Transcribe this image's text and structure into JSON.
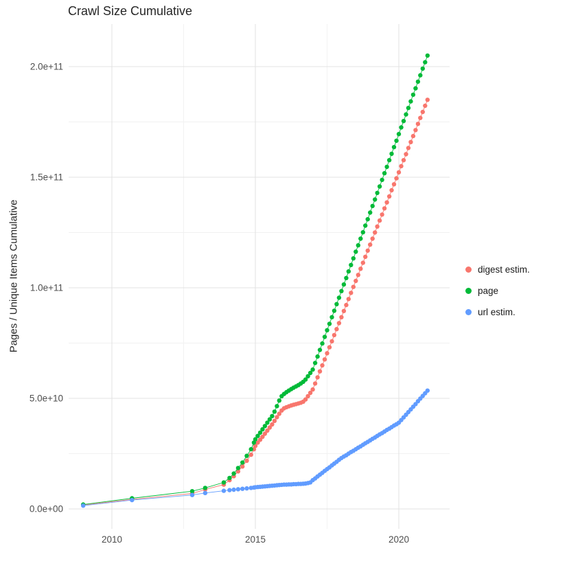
{
  "title": "Crawl Size Cumulative",
  "axes": {
    "y_label": "Pages / Unique Items Cumulative",
    "x_ticks": {
      "values": [
        2010,
        2015,
        2020
      ],
      "labels": [
        "2010",
        "2015",
        "2020"
      ]
    },
    "y_ticks": {
      "values": [
        0,
        50,
        100,
        150,
        200
      ],
      "labels": [
        "0.0e+00",
        "5.0e+10",
        "1.0e+11",
        "1.5e+11",
        "2.0e+11"
      ]
    },
    "x_minor": [
      2012.5,
      2017.5
    ],
    "y_minor": [
      25,
      75,
      125,
      175
    ]
  },
  "legend": {
    "items": [
      {
        "label": "digest estim.",
        "color": "#F8766D"
      },
      {
        "label": "page",
        "color": "#00BA38"
      },
      {
        "label": "url estim.",
        "color": "#619CFF"
      }
    ]
  },
  "chart_data": {
    "type": "line",
    "title": "Crawl Size Cumulative",
    "xlabel": "",
    "ylabel": "Pages / Unique Items Cumulative",
    "y_unit_multiplier": 1000000000,
    "note": "y values are in units of 1e9 items (cumulative); x is decimal year",
    "xlim": [
      2008.5,
      2021.8
    ],
    "ylim": [
      0,
      219
    ],
    "grid": true,
    "legend_position": "right",
    "x": [
      2009.0,
      2010.7,
      2012.8,
      2013.25,
      2013.9,
      2014.1,
      2014.25,
      2014.4,
      2014.55,
      2014.7,
      2014.85,
      2014.95,
      2015.0,
      2015.083,
      2015.167,
      2015.25,
      2015.333,
      2015.417,
      2015.5,
      2015.583,
      2015.667,
      2015.75,
      2015.833,
      2015.917,
      2016.0,
      2016.083,
      2016.167,
      2016.25,
      2016.333,
      2016.417,
      2016.5,
      2016.583,
      2016.667,
      2016.75,
      2016.833,
      2016.917,
      2017.0,
      2017.083,
      2017.167,
      2017.25,
      2017.333,
      2017.417,
      2017.5,
      2017.583,
      2017.667,
      2017.75,
      2017.833,
      2017.917,
      2018.0,
      2018.083,
      2018.167,
      2018.25,
      2018.333,
      2018.417,
      2018.5,
      2018.583,
      2018.667,
      2018.75,
      2018.833,
      2018.917,
      2019.0,
      2019.083,
      2019.167,
      2019.25,
      2019.333,
      2019.417,
      2019.5,
      2019.583,
      2019.667,
      2019.75,
      2019.833,
      2019.917,
      2020.0,
      2020.083,
      2020.167,
      2020.25,
      2020.333,
      2020.417,
      2020.5,
      2020.583,
      2020.667,
      2020.75,
      2020.833,
      2020.917,
      2021.0
    ],
    "series": [
      {
        "name": "digest estim.",
        "color": "#F8766D",
        "values": [
          1.8,
          4.3,
          7.0,
          8.8,
          11.0,
          13.0,
          14.8,
          17.0,
          19.2,
          21.8,
          24.5,
          27.0,
          28.5,
          30.0,
          31.3,
          32.6,
          34.0,
          35.4,
          36.8,
          38.2,
          39.8,
          41.5,
          43.0,
          44.5,
          45.5,
          46.0,
          46.4,
          46.8,
          47.1,
          47.4,
          47.7,
          48.0,
          48.5,
          49.5,
          51.0,
          52.5,
          54.0,
          56.7,
          59.5,
          62.2,
          64.9,
          67.6,
          70.4,
          73.1,
          75.8,
          78.6,
          81.3,
          84.0,
          86.7,
          89.5,
          92.2,
          94.9,
          97.7,
          100.4,
          103.1,
          105.8,
          108.6,
          111.3,
          114.0,
          116.8,
          119.5,
          122.2,
          125.0,
          127.7,
          130.4,
          133.1,
          135.9,
          138.6,
          141.3,
          144.1,
          146.8,
          149.5,
          152.2,
          155.0,
          157.7,
          160.4,
          163.2,
          165.9,
          168.6,
          171.3,
          174.1,
          176.8,
          179.5,
          182.3,
          185.0
        ]
      },
      {
        "name": "page",
        "color": "#00BA38",
        "values": [
          2.0,
          4.8,
          8.0,
          9.5,
          12.0,
          14.0,
          16.0,
          18.5,
          21.0,
          24.0,
          27.0,
          30.0,
          31.5,
          33.0,
          34.5,
          36.0,
          37.5,
          39.0,
          40.5,
          42.0,
          44.0,
          46.5,
          49.0,
          51.0,
          52.0,
          52.8,
          53.5,
          54.2,
          54.8,
          55.4,
          56.0,
          56.7,
          57.5,
          58.5,
          60.0,
          61.5,
          63.0,
          66.0,
          68.9,
          71.9,
          74.8,
          77.8,
          80.8,
          83.7,
          86.7,
          89.6,
          92.6,
          95.5,
          98.5,
          101.5,
          104.4,
          107.4,
          110.3,
          113.3,
          116.3,
          119.2,
          122.2,
          125.1,
          128.1,
          131.0,
          134.0,
          137.0,
          139.9,
          142.9,
          145.8,
          148.8,
          151.8,
          154.7,
          157.7,
          160.6,
          163.6,
          166.5,
          169.5,
          172.5,
          175.4,
          178.4,
          181.3,
          184.3,
          187.3,
          190.2,
          193.2,
          196.1,
          199.1,
          202.0,
          205.0
        ]
      },
      {
        "name": "url estim.",
        "color": "#619CFF",
        "values": [
          1.5,
          4.0,
          6.3,
          7.2,
          8.2,
          8.5,
          8.7,
          8.9,
          9.1,
          9.3,
          9.5,
          9.7,
          9.8,
          9.9,
          10.0,
          10.1,
          10.2,
          10.3,
          10.4,
          10.5,
          10.6,
          10.7,
          10.8,
          10.9,
          11.0,
          11.0,
          11.1,
          11.1,
          11.2,
          11.2,
          11.3,
          11.3,
          11.4,
          11.5,
          11.7,
          12.0,
          13.0,
          13.8,
          14.7,
          15.5,
          16.3,
          17.2,
          18.0,
          18.8,
          19.7,
          20.5,
          21.3,
          22.2,
          23.0,
          23.7,
          24.3,
          25.0,
          25.7,
          26.3,
          27.0,
          27.7,
          28.3,
          29.0,
          29.7,
          30.3,
          31.0,
          31.7,
          32.3,
          33.0,
          33.7,
          34.3,
          35.0,
          35.7,
          36.3,
          37.0,
          37.7,
          38.3,
          39.0,
          40.2,
          41.4,
          42.6,
          43.8,
          45.0,
          46.2,
          47.4,
          48.7,
          49.9,
          51.1,
          52.3,
          53.5
        ]
      }
    ]
  }
}
